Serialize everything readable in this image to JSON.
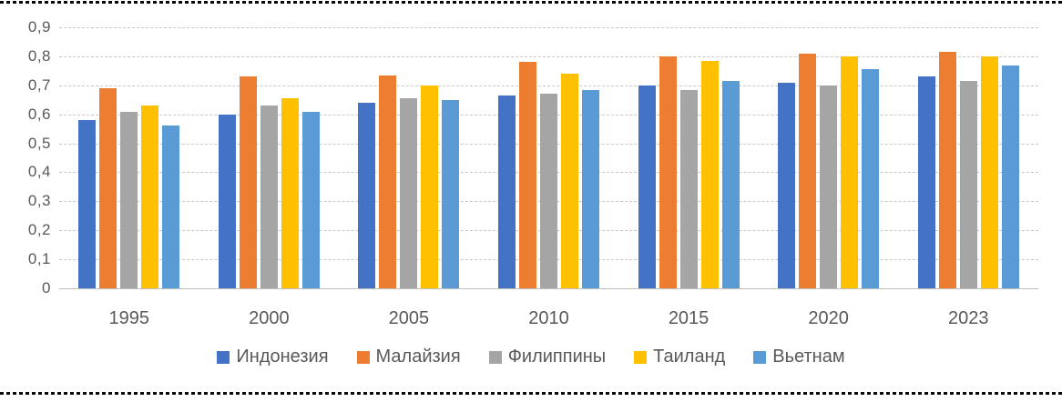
{
  "figure": {
    "background": "#ffffff",
    "rule_color": "#0a0a0a",
    "axis_label_color": "#595959",
    "gridline_color": "#c9c9c9"
  },
  "chart_data": {
    "type": "bar",
    "title": "",
    "xlabel": "",
    "ylabel": "",
    "categories": [
      "1995",
      "2000",
      "2005",
      "2010",
      "2015",
      "2020",
      "2023"
    ],
    "series": [
      {
        "key": "indonesia",
        "name": "Индонезия",
        "color": "#4472C4",
        "values": [
          0.58,
          0.6,
          0.64,
          0.665,
          0.7,
          0.71,
          0.73
        ]
      },
      {
        "key": "malaysia",
        "name": "Малайзия",
        "color": "#ED7D31",
        "values": [
          0.69,
          0.73,
          0.735,
          0.78,
          0.8,
          0.81,
          0.815
        ]
      },
      {
        "key": "philippines",
        "name": "Филиппины",
        "color": "#A5A5A5",
        "values": [
          0.61,
          0.63,
          0.655,
          0.67,
          0.685,
          0.7,
          0.715
        ]
      },
      {
        "key": "thailand",
        "name": "Таиланд",
        "color": "#FFC000",
        "values": [
          0.63,
          0.655,
          0.7,
          0.74,
          0.785,
          0.8,
          0.8
        ]
      },
      {
        "key": "vietnam",
        "name": "Вьетнам",
        "color": "#5B9BD5",
        "values": [
          0.56,
          0.61,
          0.65,
          0.685,
          0.715,
          0.755,
          0.77
        ]
      }
    ],
    "ylim": [
      0,
      0.9
    ],
    "ytick_step": 0.1,
    "ytick_labels": [
      "0",
      "0,1",
      "0,2",
      "0,3",
      "0,4",
      "0,5",
      "0,6",
      "0,7",
      "0,8",
      "0,9"
    ],
    "decimal_separator": ",",
    "grid": "horizontal-dashed",
    "legend_position": "bottom"
  }
}
